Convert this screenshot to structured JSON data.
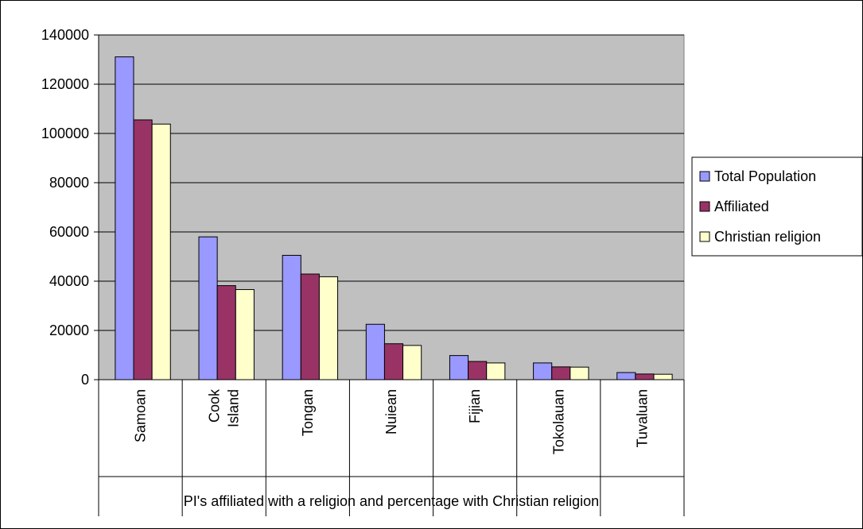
{
  "chart_data": {
    "type": "bar",
    "title": "",
    "xlabel": "PI's affiliated with a religion and percentage with Christian religion",
    "ylabel": "",
    "ylim": [
      0,
      140000
    ],
    "yticks": [
      0,
      20000,
      40000,
      60000,
      80000,
      100000,
      120000,
      140000
    ],
    "grid": true,
    "legend_position": "right",
    "categories": [
      [
        "Samoan"
      ],
      [
        "Cook",
        "Island"
      ],
      [
        "Tongan"
      ],
      [
        "Nuiean"
      ],
      [
        "Fijian"
      ],
      [
        "Tokolauan"
      ],
      [
        "Tuvaluan"
      ]
    ],
    "series": [
      {
        "name": "Total Population",
        "color": "#9999ff",
        "values": [
          131100,
          58000,
          50500,
          22500,
          9800,
          6800,
          2900
        ]
      },
      {
        "name": "Affiliated",
        "color": "#993366",
        "values": [
          105500,
          38200,
          42900,
          14600,
          7400,
          5200,
          2300
        ]
      },
      {
        "name": "Christian religion",
        "color": "#ffffcc",
        "values": [
          103800,
          36600,
          41800,
          13900,
          6800,
          5100,
          2200
        ]
      }
    ]
  }
}
